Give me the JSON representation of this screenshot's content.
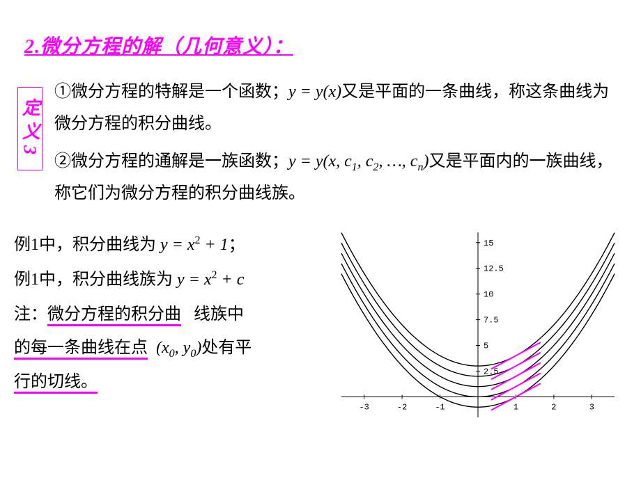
{
  "heading": "2.微分方程的解（几何意义）：",
  "def_label": "定义3",
  "para1_a": "①微分方程的特解是一个函数；",
  "para1_eq": "y = y(x)",
  "para1_b": "又是平面的一条曲线，称这条曲线为微分方程的积分曲线。",
  "para2_a": "②微分方程的通解是一族函数；",
  "para2_eq_a": "y = y(x, c",
  "para2_eq_b": ", c",
  "para2_eq_c": ", …, c",
  "para2_eq_d": ")",
  "para2_b": "又是平面内的一族曲线，称它们为微分方程的积分曲线族。",
  "ex1_a": "例1中，积分曲线为  ",
  "ex1_eq": "y = x",
  "ex1_b": " + 1",
  "ex1_c": "；",
  "ex2_a": "例1中，积分曲线族为  ",
  "ex2_eq": "y = x",
  "ex2_b": " + c",
  "note_a": "注：",
  "note_b": "微分方程的积分曲",
  "note_c": "线族中的每一条曲线在点",
  "note_pt_a": "(x",
  "note_pt_b": ", y",
  "note_pt_c": ")",
  "note_d": "处有平行的切线。",
  "chart": {
    "xrange": [
      -3.6,
      3.6
    ],
    "yrange": [
      -2,
      16
    ],
    "xticks": [
      -3,
      -2,
      -1,
      1,
      2,
      3
    ],
    "yticks": [
      2.5,
      5,
      7.5,
      10,
      12.5,
      15
    ],
    "curves_c": [
      -1,
      0,
      1,
      2,
      3
    ],
    "curve_color": "#000000",
    "axis_color": "#000000",
    "tangent_color": "#ff00ff",
    "tangent_x": [
      0.3,
      1.5
    ],
    "tangent_slope_at": 1.0,
    "background": "#ffffff",
    "tick_fontsize": 12
  }
}
